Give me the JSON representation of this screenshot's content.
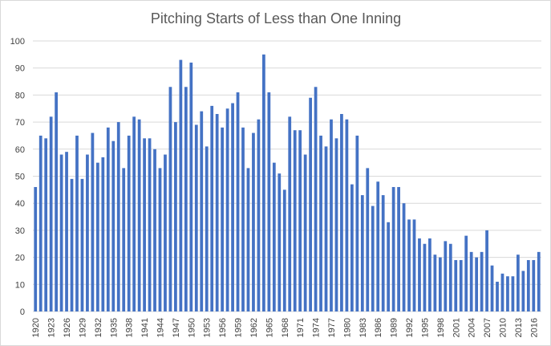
{
  "chart_data": {
    "type": "bar",
    "title": "Pitching Starts of Less than One Inning",
    "xlabel": "",
    "ylabel": "",
    "ylim": [
      0,
      100
    ],
    "yticks": [
      0,
      10,
      20,
      30,
      40,
      50,
      60,
      70,
      80,
      90,
      100
    ],
    "grid": true,
    "legend": "none",
    "bar_color": "#4472c4",
    "categories": [
      "1920",
      "1921",
      "1922",
      "1923",
      "1924",
      "1925",
      "1926",
      "1927",
      "1928",
      "1929",
      "1930",
      "1931",
      "1932",
      "1933",
      "1934",
      "1935",
      "1936",
      "1937",
      "1938",
      "1939",
      "1940",
      "1941",
      "1942",
      "1943",
      "1944",
      "1945",
      "1946",
      "1947",
      "1948",
      "1949",
      "1950",
      "1951",
      "1952",
      "1953",
      "1954",
      "1955",
      "1956",
      "1957",
      "1958",
      "1959",
      "1960",
      "1961",
      "1962",
      "1963",
      "1964",
      "1965",
      "1966",
      "1967",
      "1968",
      "1969",
      "1970",
      "1971",
      "1972",
      "1973",
      "1974",
      "1975",
      "1976",
      "1977",
      "1978",
      "1979",
      "1980",
      "1981",
      "1982",
      "1983",
      "1984",
      "1985",
      "1986",
      "1987",
      "1988",
      "1989",
      "1990",
      "1991",
      "1992",
      "1993",
      "1994",
      "1995",
      "1996",
      "1997",
      "1998",
      "1999",
      "2000",
      "2001",
      "2002",
      "2003",
      "2004",
      "2005",
      "2006",
      "2007",
      "2008",
      "2009",
      "2010",
      "2011",
      "2012",
      "2013",
      "2014",
      "2015",
      "2016",
      "2017"
    ],
    "xtick_labels": [
      "1920",
      "1923",
      "1926",
      "1929",
      "1932",
      "1935",
      "1938",
      "1941",
      "1944",
      "1947",
      "1950",
      "1953",
      "1956",
      "1959",
      "1962",
      "1965",
      "1968",
      "1971",
      "1974",
      "1977",
      "1980",
      "1983",
      "1986",
      "1989",
      "1992",
      "1995",
      "1998",
      "2001",
      "2004",
      "2007",
      "2010",
      "2013",
      "2016"
    ],
    "values": [
      46,
      65,
      64,
      72,
      81,
      58,
      59,
      49,
      65,
      49,
      58,
      66,
      55,
      57,
      68,
      63,
      70,
      53,
      65,
      72,
      71,
      64,
      64,
      60,
      53,
      58,
      83,
      70,
      93,
      83,
      92,
      69,
      74,
      61,
      76,
      73,
      68,
      75,
      77,
      81,
      68,
      53,
      66,
      71,
      95,
      81,
      55,
      51,
      45,
      72,
      67,
      67,
      58,
      79,
      83,
      65,
      61,
      71,
      64,
      73,
      71,
      47,
      65,
      43,
      53,
      39,
      48,
      43,
      33,
      46,
      46,
      40,
      34,
      34,
      27,
      25,
      27,
      21,
      20,
      26,
      25,
      19,
      19,
      28,
      22,
      20,
      22,
      30,
      17,
      11,
      14,
      13,
      13,
      21,
      15,
      19,
      19,
      22
    ]
  }
}
